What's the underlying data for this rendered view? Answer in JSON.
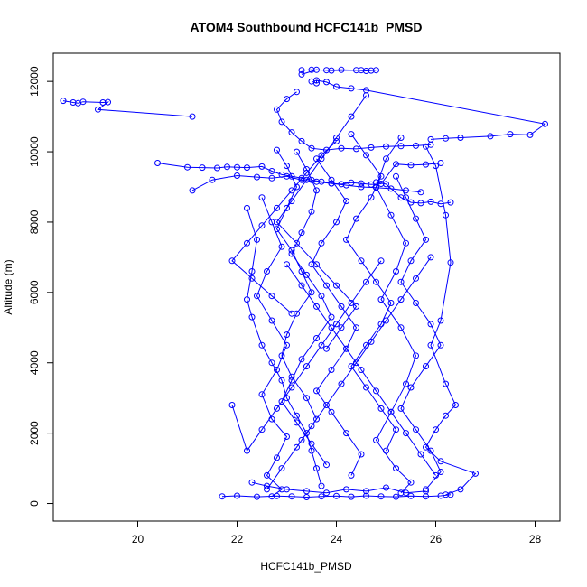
{
  "chart_data": {
    "type": "line",
    "title": "ATOM4 Southbound HCFC141b_PMSD",
    "xlabel": "HCFC141b_PMSD",
    "ylabel": "Altitude (m)",
    "xlim": [
      18.3,
      28.5
    ],
    "ylim": [
      -500,
      12800
    ],
    "x_ticks": [
      20,
      22,
      24,
      26,
      28
    ],
    "y_ticks": [
      0,
      2000,
      4000,
      6000,
      8000,
      10000,
      12000
    ],
    "grid": false,
    "legend": "none",
    "series_color": "#0000ff",
    "marker": "open-circle",
    "series": [
      {
        "x": [
          18.5,
          18.7,
          18.8,
          18.9,
          19.3,
          19.4,
          19.2,
          21.1
        ],
        "y": [
          11450,
          11400,
          11380,
          11420,
          11400,
          11410,
          11200,
          11000
        ]
      },
      {
        "x": [
          23.3,
          23.5,
          23.8,
          24.1,
          24.5,
          24.7,
          24.8,
          24.6,
          24.4,
          23.9,
          23.6,
          23.3
        ],
        "y": [
          12320,
          12330,
          12320,
          12330,
          12320,
          12310,
          12320,
          12300,
          12320,
          12310,
          12330,
          12200
        ]
      },
      {
        "x": [
          23.5,
          23.6,
          23.6,
          23.8,
          24.0,
          24.3,
          24.6,
          28.2,
          27.9,
          27.5,
          27.1,
          26.5,
          26.2,
          25.9
        ],
        "y": [
          12000,
          11950,
          12030,
          11980,
          11850,
          11800,
          11750,
          10790,
          10480,
          10500,
          10440,
          10400,
          10380,
          10350
        ]
      },
      {
        "x": [
          23.2,
          23.0,
          22.8,
          22.9,
          23.1,
          23.3,
          23.5,
          23.8,
          24.1,
          24.4,
          24.7,
          25.0,
          25.3,
          25.6,
          25.9
        ],
        "y": [
          11700,
          11500,
          11200,
          10850,
          10550,
          10300,
          10100,
          10050,
          10100,
          10080,
          10120,
          10150,
          10160,
          10170,
          10200
        ]
      },
      {
        "x": [
          20.4,
          21.0,
          21.3,
          21.6,
          21.8,
          22.0,
          22.2,
          22.5,
          22.7,
          22.9,
          23.1,
          23.3,
          23.5,
          23.7,
          23.9,
          24.1,
          24.3,
          24.5,
          24.7,
          24.9,
          25.2,
          25.5,
          25.8,
          26.1
        ],
        "y": [
          9680,
          9560,
          9550,
          9540,
          9570,
          9560,
          9550,
          9580,
          9450,
          9350,
          9300,
          9250,
          9200,
          9150,
          9100,
          9080,
          9120,
          9100,
          9070,
          9090,
          9650,
          9620,
          9640,
          9680
        ]
      },
      {
        "x": [
          24.8,
          25.0,
          25.3,
          25.5,
          25.7,
          25.9,
          26.1,
          26.3
        ],
        "y": [
          9130,
          9080,
          8700,
          8560,
          8540,
          8580,
          8520,
          8560
        ]
      },
      {
        "x": [
          21.1,
          21.5,
          22.0,
          22.4,
          22.7,
          23.0,
          23.3,
          23.6,
          23.9,
          24.2,
          24.5,
          24.8,
          25.1,
          25.4,
          25.7
        ],
        "y": [
          8900,
          9200,
          9320,
          9280,
          9250,
          9300,
          9200,
          9150,
          9100,
          9050,
          9000,
          8980,
          8950,
          8900,
          8850
        ]
      },
      {
        "x": [
          22.2,
          22.4,
          22.3,
          22.2,
          22.3,
          22.5,
          22.7,
          22.9,
          23.0,
          23.2,
          23.4,
          23.5,
          23.6,
          23.7
        ],
        "y": [
          8400,
          7500,
          6600,
          5800,
          5300,
          4500,
          4000,
          3500,
          3000,
          2500,
          2000,
          1500,
          1000,
          500
        ]
      },
      {
        "x": [
          22.8,
          23.0,
          23.2,
          23.0,
          22.8,
          23.1,
          23.3,
          23.5,
          23.2,
          23.0,
          22.9,
          23.1,
          23.4,
          23.6,
          23.3
        ],
        "y": [
          10050,
          9600,
          9000,
          8400,
          7800,
          7200,
          6600,
          6000,
          5400,
          4800,
          4200,
          3600,
          3000,
          2400,
          1800
        ]
      },
      {
        "x": [
          23.2,
          23.4,
          23.6,
          23.5,
          23.3,
          23.1,
          23.4,
          23.7,
          23.9,
          23.6,
          23.3,
          23.1,
          22.9,
          23.2,
          23.5,
          23.8
        ],
        "y": [
          10000,
          9500,
          8900,
          8300,
          7700,
          7100,
          6500,
          5900,
          5300,
          4700,
          4100,
          3500,
          2900,
          2300,
          1700,
          1100
        ]
      },
      {
        "x": [
          23.6,
          23.9,
          24.2,
          24.0,
          23.7,
          23.5,
          23.8,
          24.1,
          24.4,
          24.2,
          23.9,
          23.6,
          23.9,
          24.2,
          24.5,
          24.3
        ],
        "y": [
          9800,
          9200,
          8600,
          8000,
          7400,
          6800,
          6200,
          5600,
          5000,
          4400,
          3800,
          3200,
          2600,
          2000,
          1400,
          800
        ]
      },
      {
        "x": [
          24.3,
          24.6,
          24.9,
          24.7,
          24.4,
          24.2,
          24.5,
          24.8,
          25.1,
          24.9,
          24.6,
          24.3,
          24.6,
          24.9,
          25.2,
          25.0
        ],
        "y": [
          10500,
          9900,
          9300,
          8700,
          8100,
          7500,
          6900,
          6300,
          5700,
          5100,
          4500,
          3900,
          3300,
          2700,
          2100,
          1500
        ]
      },
      {
        "x": [
          25.2,
          25.4,
          25.6,
          25.8,
          25.5,
          25.3,
          25.6,
          25.9,
          26.1,
          25.8,
          25.5,
          25.3,
          25.6,
          25.9,
          26.1,
          25.8
        ],
        "y": [
          9300,
          8700,
          8100,
          7500,
          6900,
          6300,
          5700,
          5100,
          4500,
          3900,
          3300,
          2700,
          2100,
          1500,
          900,
          400
        ]
      },
      {
        "x": [
          25.8,
          26.0,
          26.2,
          26.3,
          26.1,
          25.9,
          26.2,
          26.4,
          26.2,
          26.0,
          25.8,
          26.1,
          26.8,
          26.5,
          26.2
        ],
        "y": [
          10150,
          9600,
          8200,
          6850,
          5200,
          4500,
          3400,
          2800,
          2500,
          2100,
          1600,
          1200,
          850,
          400,
          250
        ]
      },
      {
        "x": [
          25.3,
          25.0,
          24.8,
          25.1,
          25.4,
          25.2,
          24.9,
          25.3,
          25.6,
          25.4,
          25.1,
          24.8,
          25.2,
          25.5,
          25.3
        ],
        "y": [
          10400,
          9800,
          9000,
          8200,
          7400,
          6600,
          5800,
          5000,
          4200,
          3400,
          2600,
          1800,
          1000,
          600,
          300
        ]
      },
      {
        "x": [
          22.5,
          22.7,
          22.9,
          22.6,
          22.4,
          22.7,
          23.0,
          22.8,
          22.5,
          22.7,
          23.0,
          22.8,
          22.6,
          22.9,
          22.7
        ],
        "y": [
          8700,
          8000,
          7300,
          6600,
          5900,
          5200,
          4500,
          3800,
          3100,
          2400,
          1900,
          1300,
          800,
          400,
          200
        ]
      },
      {
        "x": [
          21.7,
          22.0,
          22.4,
          22.8,
          23.1,
          23.4,
          23.7,
          24.0,
          24.3,
          24.6,
          24.9,
          25.2,
          25.5,
          25.8,
          26.1,
          26.3
        ],
        "y": [
          200,
          220,
          190,
          210,
          200,
          180,
          200,
          210,
          190,
          220,
          200,
          190,
          210,
          200,
          220,
          250
        ]
      },
      {
        "x": [
          22.3,
          22.6,
          23.0,
          23.4,
          23.8,
          24.2,
          24.6,
          25.0,
          25.4,
          25.8
        ],
        "y": [
          600,
          500,
          400,
          350,
          300,
          400,
          350,
          450,
          300,
          350
        ]
      },
      {
        "x": [
          24.0,
          23.7,
          23.4,
          23.1,
          22.8,
          22.5,
          22.2,
          21.9,
          22.3,
          22.7,
          23.1
        ],
        "y": [
          10300,
          9900,
          9400,
          8900,
          8400,
          7900,
          7400,
          6900,
          6400,
          5900,
          5400
        ]
      },
      {
        "x": [
          24.6,
          24.3,
          24.0,
          23.7,
          23.4,
          23.1,
          22.8,
          23.2,
          23.6,
          24.0,
          24.4,
          24.1,
          23.8
        ],
        "y": [
          11600,
          11000,
          10400,
          9800,
          9200,
          8600,
          8000,
          7400,
          6800,
          6200,
          5600,
          5000,
          4400
        ]
      },
      {
        "x": [
          23.0,
          23.3,
          23.6,
          23.9,
          24.2,
          24.5,
          24.8,
          25.1,
          25.4,
          25.7,
          26.0
        ],
        "y": [
          6800,
          6200,
          5600,
          5000,
          4400,
          3800,
          3200,
          2600,
          2000,
          1400,
          800
        ]
      },
      {
        "x": [
          25.9,
          25.6,
          25.3,
          25.0,
          24.7,
          24.4,
          24.1,
          23.8,
          23.5,
          23.2,
          22.9,
          22.6
        ],
        "y": [
          7000,
          6400,
          5800,
          5200,
          4600,
          4000,
          3400,
          2800,
          2200,
          1600,
          1000,
          400
        ]
      },
      {
        "x": [
          24.9,
          24.6,
          24.3,
          24.0,
          23.7,
          23.4,
          23.1,
          22.8,
          22.5,
          22.2,
          21.9
        ],
        "y": [
          6900,
          6300,
          5700,
          5100,
          4500,
          3900,
          3300,
          2700,
          2100,
          1500,
          2800
        ]
      }
    ]
  }
}
